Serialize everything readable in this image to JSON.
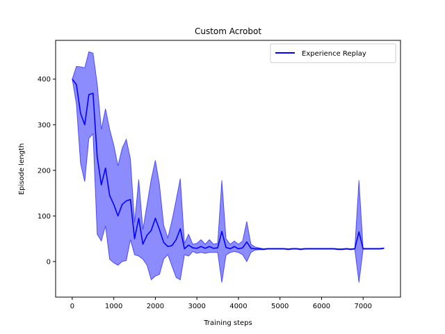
{
  "chart_data": {
    "type": "line",
    "title": "Custom Acrobot",
    "xlabel": "Training steps",
    "ylabel": "Episode length",
    "xlim": [
      -400,
      7900
    ],
    "ylim": [
      -78,
      485
    ],
    "xticks": [
      0,
      1000,
      2000,
      3000,
      4000,
      5000,
      6000,
      7000
    ],
    "yticks": [
      0,
      100,
      200,
      300,
      400
    ],
    "grid": false,
    "legend": "top-right",
    "colors": {
      "line": "#0000ff",
      "band": "#0000ff",
      "band_opacity": 0.45,
      "axes": "#000000"
    },
    "series": [
      {
        "name": "Experience Replay",
        "x": [
          0,
          100,
          200,
          300,
          400,
          500,
          600,
          700,
          800,
          900,
          1000,
          1100,
          1200,
          1300,
          1400,
          1500,
          1600,
          1700,
          1800,
          1900,
          2000,
          2100,
          2200,
          2300,
          2400,
          2500,
          2600,
          2700,
          2800,
          2900,
          3000,
          3100,
          3200,
          3300,
          3400,
          3500,
          3600,
          3700,
          3800,
          3900,
          4000,
          4100,
          4200,
          4300,
          4400,
          4500,
          4600,
          4700,
          4800,
          4900,
          5000,
          5100,
          5200,
          5300,
          5400,
          5500,
          5600,
          5700,
          5800,
          5900,
          6000,
          6100,
          6200,
          6300,
          6400,
          6500,
          6600,
          6700,
          6800,
          6900,
          7000,
          7100,
          7200,
          7300,
          7400,
          7500
        ],
        "y": [
          400,
          388,
          325,
          300,
          366,
          369,
          230,
          168,
          205,
          145,
          125,
          100,
          125,
          133,
          136,
          50,
          95,
          38,
          58,
          68,
          95,
          70,
          42,
          33,
          35,
          48,
          72,
          28,
          36,
          30,
          29,
          33,
          29,
          33,
          29,
          30,
          66,
          31,
          28,
          33,
          28,
          30,
          43,
          29,
          28,
          28,
          27,
          28,
          28,
          28,
          28,
          28,
          27,
          28,
          28,
          27,
          28,
          28,
          28,
          28,
          28,
          28,
          28,
          28,
          27,
          27,
          28,
          27,
          28,
          65,
          28,
          28,
          28,
          28,
          28,
          29
        ],
        "upper": [
          400,
          428,
          427,
          425,
          460,
          457,
          390,
          290,
          335,
          290,
          255,
          210,
          248,
          268,
          225,
          85,
          180,
          70,
          125,
          180,
          222,
          168,
          80,
          52,
          90,
          135,
          182,
          40,
          60,
          38,
          40,
          48,
          38,
          48,
          38,
          40,
          178,
          50,
          38,
          45,
          38,
          45,
          88,
          38,
          32,
          30,
          28,
          29,
          29,
          29,
          29,
          29,
          28,
          29,
          29,
          28,
          29,
          29,
          29,
          29,
          29,
          29,
          29,
          29,
          28,
          28,
          29,
          28,
          29,
          178,
          29,
          29,
          29,
          29,
          29,
          30
        ],
        "lower": [
          400,
          345,
          215,
          175,
          270,
          280,
          60,
          45,
          78,
          5,
          -3,
          -8,
          0,
          2,
          48,
          15,
          12,
          5,
          -8,
          -40,
          -32,
          -28,
          5,
          15,
          -10,
          -35,
          -40,
          15,
          12,
          22,
          18,
          20,
          18,
          20,
          20,
          20,
          -46,
          14,
          20,
          22,
          20,
          15,
          0,
          20,
          25,
          26,
          26,
          27,
          27,
          27,
          27,
          27,
          26,
          27,
          27,
          26,
          27,
          27,
          27,
          27,
          27,
          27,
          27,
          27,
          26,
          26,
          27,
          26,
          27,
          -46,
          27,
          27,
          27,
          27,
          27,
          28
        ]
      }
    ]
  }
}
